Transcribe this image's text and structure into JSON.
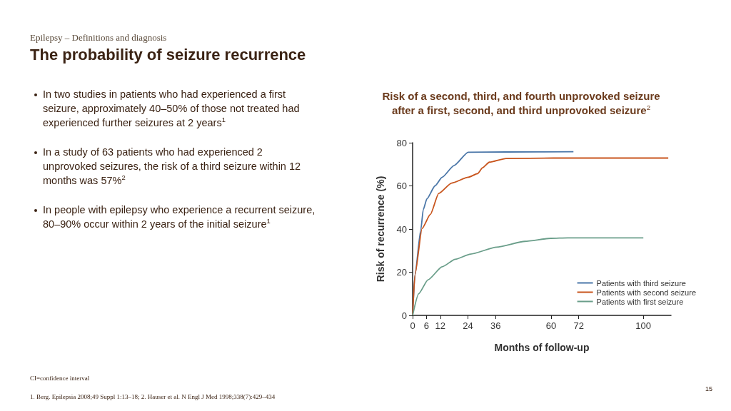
{
  "chart_data": {
    "type": "line",
    "title": "Risk of a second, third, and fourth unprovoked seizure after a first, second, and third unprovoked seizure$^{2}$",
    "xlabel": "Months of follow-up",
    "ylabel": "Risk of recurrence (%)",
    "xlim": [
      0,
      112
    ],
    "xticks": [
      0,
      6,
      12,
      24,
      36,
      60,
      72,
      100
    ],
    "ylim": [
      0,
      80
    ],
    "yticks": [
      0,
      20,
      40,
      60,
      80
    ],
    "grid": false,
    "legend": "bottom right",
    "marker": "none",
    "line_style": "solid",
    "series": [
      {
        "name": "Patients with third seizure",
        "color": "#4a76a8",
        "x": [
          0,
          1,
          3.6,
          4.6,
          6.2,
          9.7,
          12.8,
          17.9,
          24.1,
          40.5,
          69.7
        ],
        "values": [
          0,
          18.7,
          40,
          49,
          54,
          60,
          64,
          69.4,
          75.6,
          75.7,
          75.8
        ]
      },
      {
        "name": "Patients with second seizure",
        "color": "#c8541c",
        "x": [
          0,
          1,
          4.1,
          7.7,
          11.3,
          16.9,
          24.1,
          28.2,
          30.3,
          33.3,
          40.5,
          61,
          110.8
        ],
        "values": [
          0,
          18.7,
          40.3,
          46.8,
          56.5,
          61.3,
          64,
          65.7,
          68.4,
          71,
          72.7,
          72.9,
          72.9
        ]
      },
      {
        "name": "Patients with first seizure",
        "color": "#6a9e8a",
        "x": [
          0,
          2.6,
          6.7,
          12.8,
          18.5,
          25.1,
          36.4,
          48.7,
          60,
          67.2,
          100
        ],
        "values": [
          0,
          10,
          16.5,
          22.5,
          26,
          28.4,
          31.6,
          34.3,
          35.7,
          35.9,
          35.9
        ]
      }
    ],
    "annotations": [
      "Epilepsy – Definitions and diagnosis",
      "The probability of seizure recurrence",
      "In two studies in patients who had experienced a first seizure, approximately 40–50% of those not treated had experienced further seizures at 2 years$^{1}$",
      "In a study of 63 patients who had experienced 2 unprovoked seizures, the risk of a third seizure within 12 months was 57%$^{2}$",
      "In people with epilepsy who experience a recurrent seizure, 80–90% occur within 2 years of the initial seizure$^{1}$",
      "CI=confidence interval",
      "1. Berg. Epilepsia 2008;49 Suppl 1:13–18; 2. Hauser et al. N Engl J Med 1998;338(7):429–434",
      "15"
    ]
  }
}
